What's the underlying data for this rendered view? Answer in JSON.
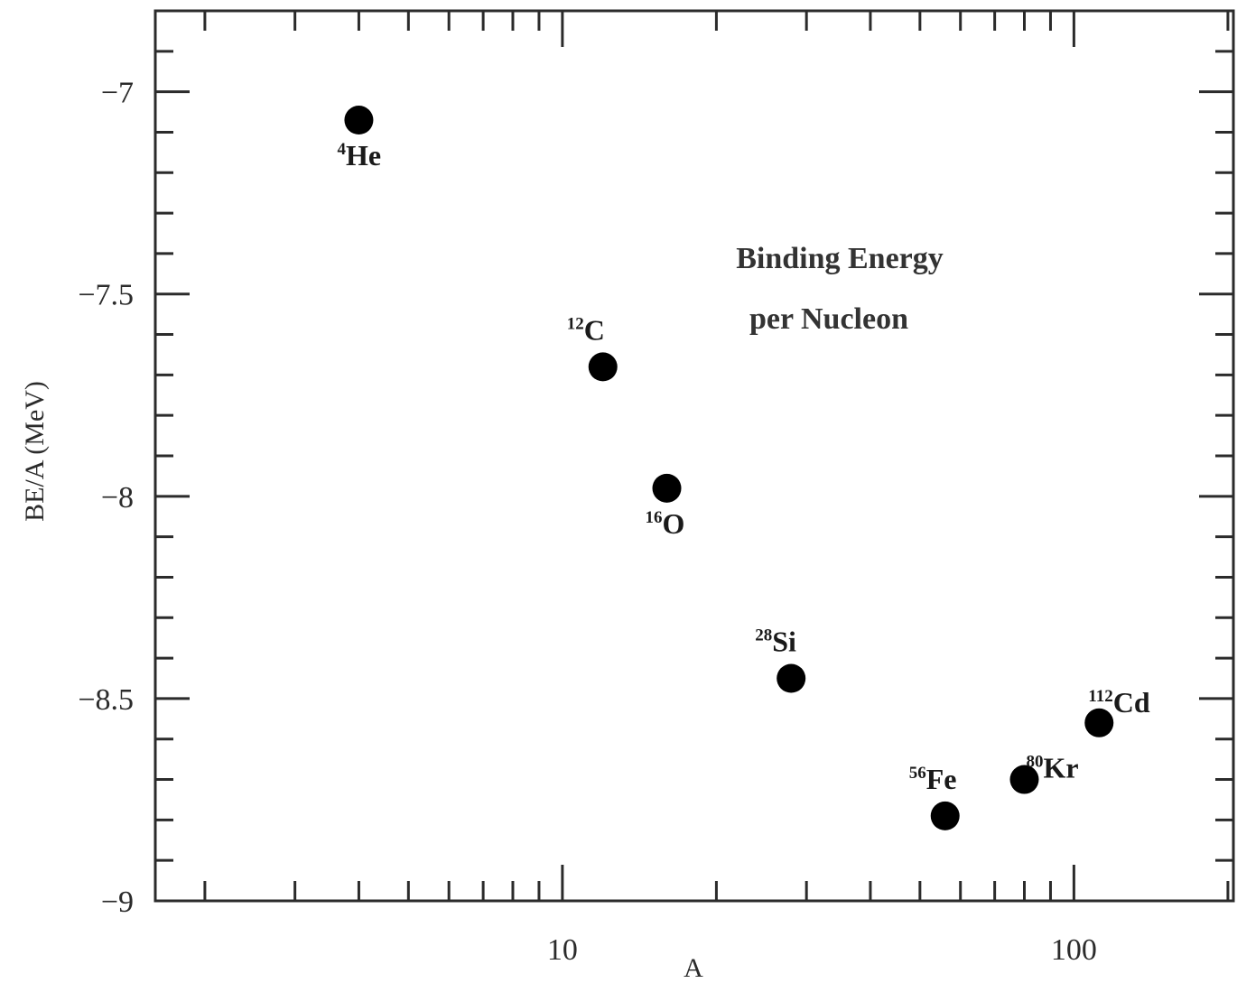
{
  "chart_data": {
    "type": "scatter",
    "title": "",
    "annotation": [
      "Binding Energy",
      "per Nucleon"
    ],
    "xlabel": "A",
    "ylabel": "BE/A (MeV)",
    "xscale": "log",
    "xlim": [
      1.6,
      205
    ],
    "ylim": [
      -9,
      -6.8
    ],
    "xticks_labeled": [
      10,
      100
    ],
    "yticks_labeled": [
      -7,
      -7.5,
      -8,
      -8.5,
      -9
    ],
    "ytick_labels": [
      "−7",
      "−7.5",
      "−8",
      "−8.5",
      "−9"
    ],
    "points": [
      {
        "mass": "4",
        "element": "He",
        "x": 4,
        "y": -7.07,
        "label_pos": "below"
      },
      {
        "mass": "12",
        "element": "C",
        "x": 12,
        "y": -7.68,
        "label_pos": "above"
      },
      {
        "mass": "16",
        "element": "O",
        "x": 16,
        "y": -7.98,
        "label_pos": "below"
      },
      {
        "mass": "28",
        "element": "Si",
        "x": 28,
        "y": -8.45,
        "label_pos": "above"
      },
      {
        "mass": "56",
        "element": "Fe",
        "x": 56,
        "y": -8.79,
        "label_pos": "above"
      },
      {
        "mass": "80",
        "element": "Kr",
        "x": 80,
        "y": -8.7,
        "label_pos": "right"
      },
      {
        "mass": "112",
        "element": "Cd",
        "x": 112,
        "y": -8.56,
        "label_pos": "above-right"
      }
    ],
    "grid": false,
    "legend": "none",
    "marker_color": "#000000"
  }
}
